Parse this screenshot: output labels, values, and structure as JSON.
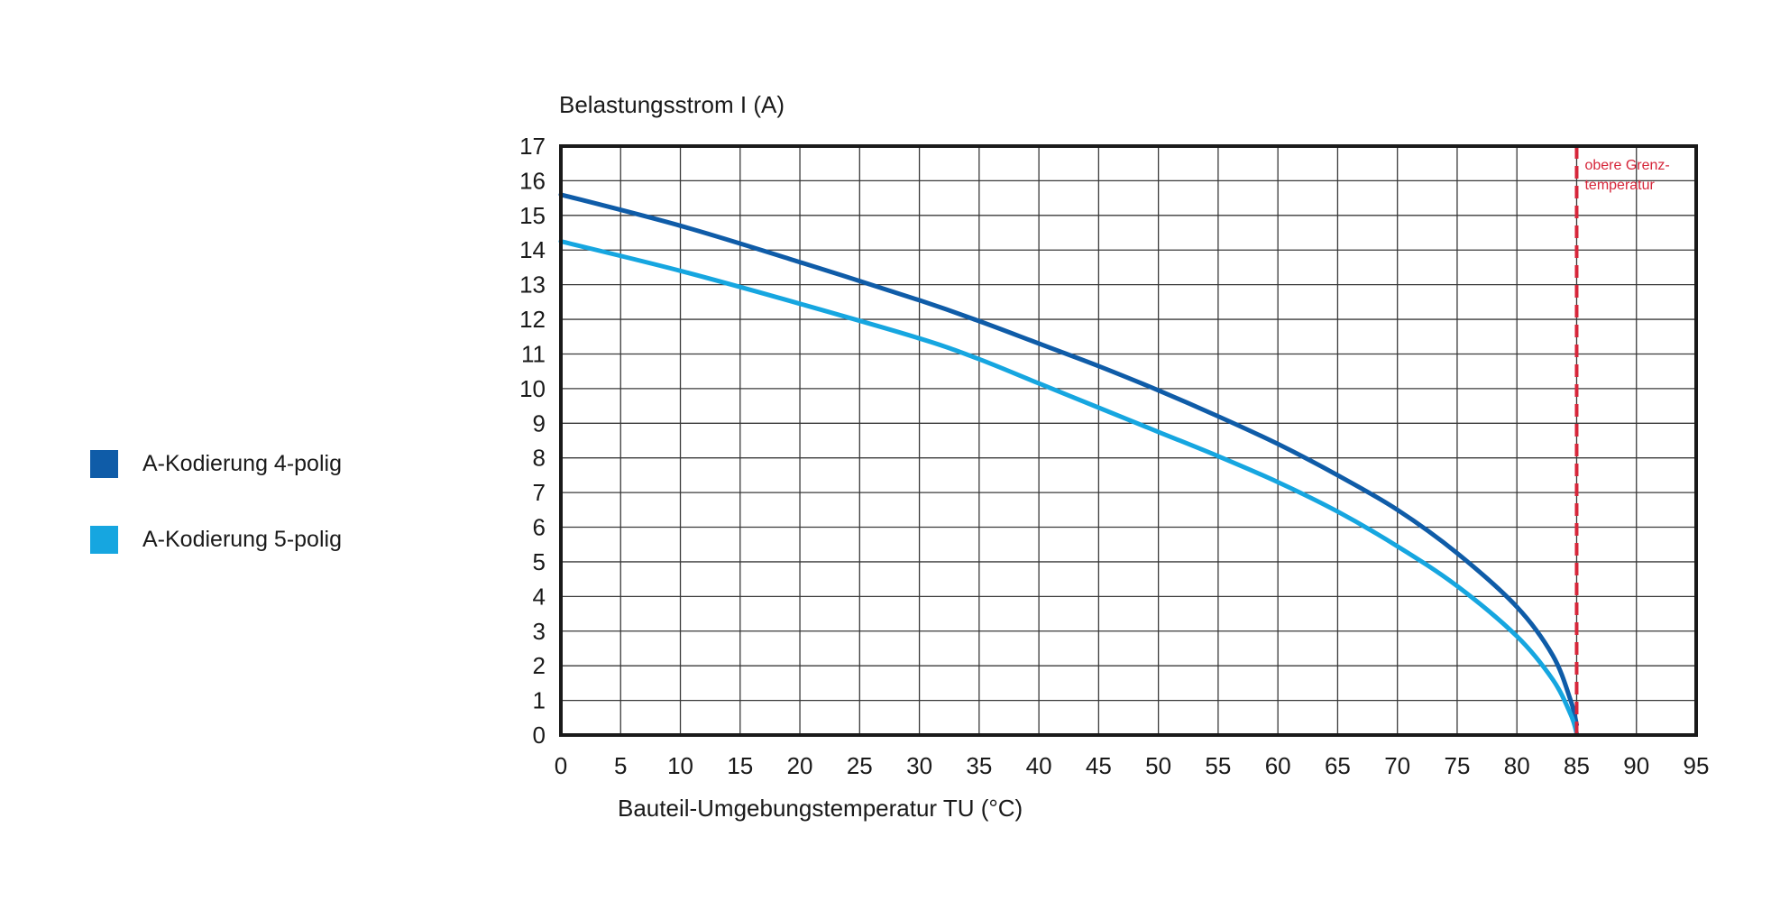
{
  "chart_data": {
    "type": "line",
    "title": "",
    "ylabel": "Belastungsstrom I (A)",
    "xlabel": "Bauteil-Umgebungstemperatur TU (°C)",
    "xlim": [
      0,
      95
    ],
    "ylim": [
      0,
      17
    ],
    "x_ticks": [
      0,
      5,
      10,
      15,
      20,
      25,
      30,
      35,
      40,
      45,
      50,
      55,
      60,
      65,
      70,
      75,
      80,
      85,
      90,
      95
    ],
    "y_ticks": [
      0,
      1,
      2,
      3,
      4,
      5,
      6,
      7,
      8,
      9,
      10,
      11,
      12,
      13,
      14,
      15,
      16,
      17
    ],
    "grid": true,
    "legend_position": "left",
    "series": [
      {
        "name": "A-Kodierung 4-polig",
        "color": "#0f5ca8",
        "points": [
          [
            0,
            15.6
          ],
          [
            10,
            14.7
          ],
          [
            20,
            13.65
          ],
          [
            30,
            12.55
          ],
          [
            35,
            11.95
          ],
          [
            40,
            11.3
          ],
          [
            45,
            10.65
          ],
          [
            50,
            9.95
          ],
          [
            55,
            9.2
          ],
          [
            60,
            8.4
          ],
          [
            65,
            7.5
          ],
          [
            70,
            6.5
          ],
          [
            75,
            5.25
          ],
          [
            80,
            3.7
          ],
          [
            83,
            2.3
          ],
          [
            84.5,
            1.0
          ],
          [
            85,
            0.3
          ]
        ]
      },
      {
        "name": "A-Kodierung 5-polig",
        "color": "#16a6e0",
        "points": [
          [
            0,
            14.25
          ],
          [
            10,
            13.4
          ],
          [
            20,
            12.45
          ],
          [
            30,
            11.45
          ],
          [
            35,
            10.85
          ],
          [
            40,
            10.15
          ],
          [
            45,
            9.45
          ],
          [
            50,
            8.75
          ],
          [
            55,
            8.05
          ],
          [
            60,
            7.3
          ],
          [
            65,
            6.45
          ],
          [
            70,
            5.45
          ],
          [
            75,
            4.3
          ],
          [
            80,
            2.85
          ],
          [
            83,
            1.6
          ],
          [
            84.5,
            0.6
          ],
          [
            85,
            0.05
          ]
        ]
      }
    ],
    "annotations": [
      {
        "type": "vline",
        "x": 85,
        "color": "#d6263a",
        "style": "dashed",
        "label_lines": [
          "obere Grenz-",
          "temperatur"
        ]
      }
    ]
  }
}
